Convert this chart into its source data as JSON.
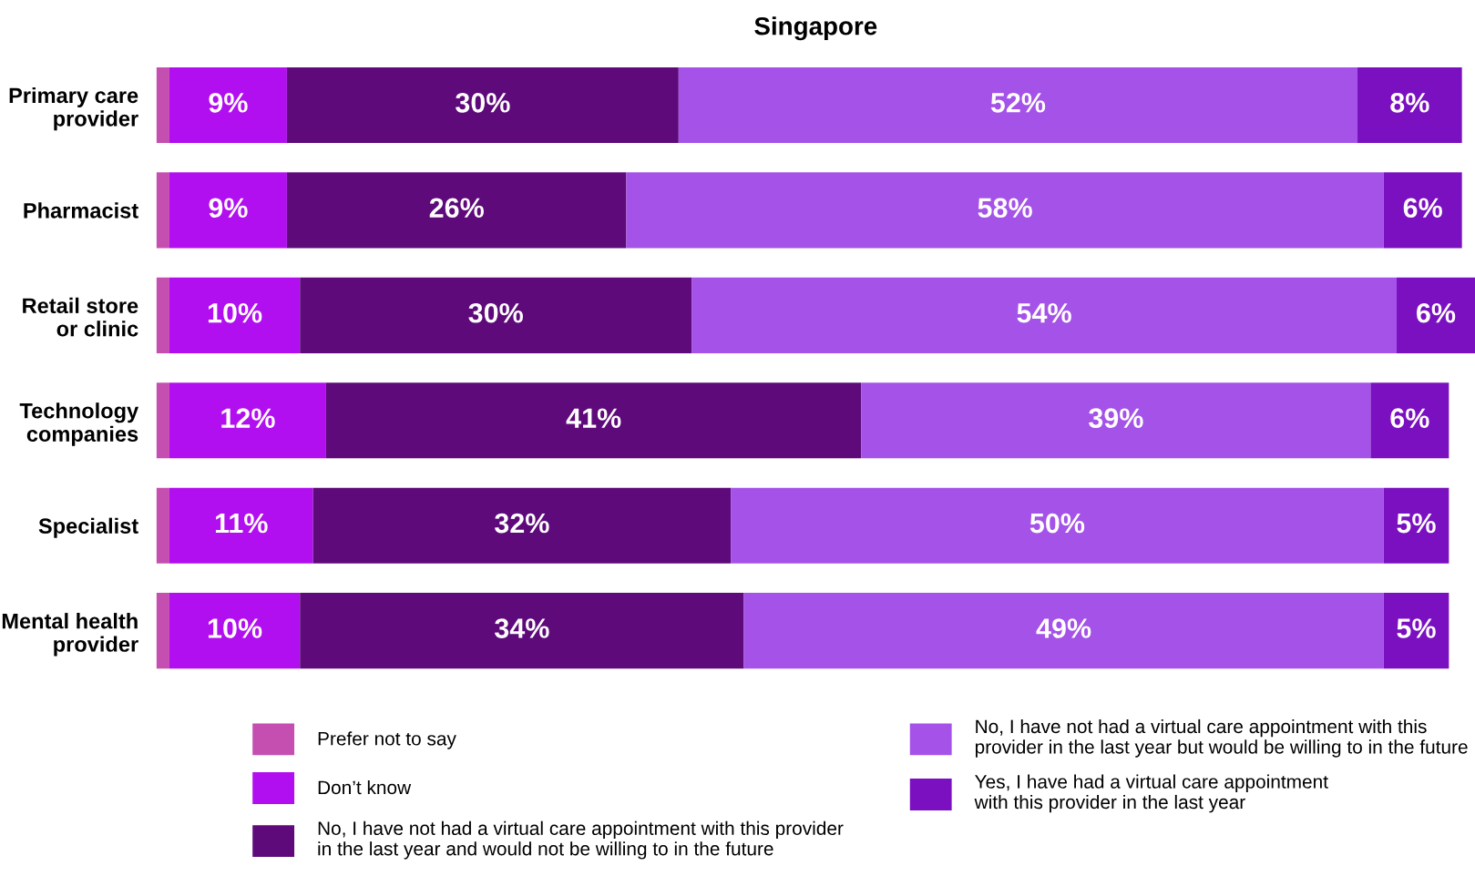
{
  "chart_data": {
    "type": "bar",
    "orientation": "horizontal",
    "stacked": true,
    "title": "Singapore",
    "categories": [
      "Primary care provider",
      "Pharmacist",
      "Retail store or clinic",
      "Technology companies",
      "Specialist",
      "Mental health provider"
    ],
    "series": [
      {
        "name": "Prefer not to say",
        "color": "#c44fb0",
        "values": [
          1,
          1,
          1,
          1,
          1,
          1
        ],
        "value_labels": [
          null,
          null,
          null,
          null,
          null,
          null
        ]
      },
      {
        "name": "Don’t know",
        "color": "#b20ff0",
        "values": [
          9,
          9,
          10,
          12,
          11,
          10
        ],
        "value_labels": [
          "9%",
          "9%",
          "10%",
          "12%",
          "11%",
          "10%"
        ]
      },
      {
        "name": "No, I have not had a virtual care appointment with this provider in the last year and would not be willing to in the future",
        "color": "#5e0a7a",
        "values": [
          30,
          26,
          30,
          41,
          32,
          34
        ],
        "value_labels": [
          "30%",
          "26%",
          "30%",
          "41%",
          "32%",
          "34%"
        ]
      },
      {
        "name": "No, I have not had a virtual care appointment with this provider in the last year but would be willing to in the future",
        "color": "#a452e8",
        "values": [
          52,
          58,
          54,
          39,
          50,
          49
        ],
        "value_labels": [
          "52%",
          "58%",
          "54%",
          "39%",
          "50%",
          "49%"
        ]
      },
      {
        "name": "Yes, I have had a virtual care appointment with this provider in the last year",
        "color": "#7a10c0",
        "values": [
          8,
          6,
          6,
          6,
          5,
          5
        ],
        "value_labels": [
          "8%",
          "6%",
          "6%",
          "6%",
          "5%",
          "5%"
        ]
      }
    ],
    "legend": "bottom",
    "grid": false
  }
}
